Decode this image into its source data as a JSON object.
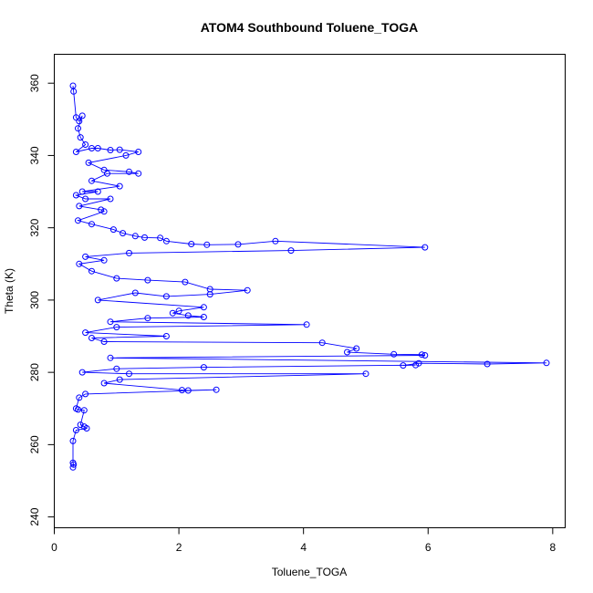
{
  "chart_data": {
    "type": "scatter",
    "title": "ATOM4 Southbound Toluene_TOGA",
    "xlabel": "Toluene_TOGA",
    "ylabel": "Theta (K)",
    "xlim": [
      0,
      8.2
    ],
    "ylim": [
      237,
      368
    ],
    "xticks": [
      0,
      2,
      4,
      6,
      8
    ],
    "yticks": [
      240,
      260,
      280,
      300,
      320,
      340,
      360
    ],
    "grid": false,
    "line_style": "points-connected",
    "series": [
      {
        "name": "Toluene_TOGA vs Theta",
        "color": "#0000ff",
        "points": [
          [
            0.3,
            359.3
          ],
          [
            0.31,
            357.7
          ],
          [
            0.35,
            350.5
          ],
          [
            0.4,
            349.5
          ],
          [
            0.45,
            351
          ],
          [
            0.38,
            347.5
          ],
          [
            0.42,
            345
          ],
          [
            0.5,
            343
          ],
          [
            0.35,
            341
          ],
          [
            0.6,
            342
          ],
          [
            0.7,
            342
          ],
          [
            0.9,
            341.5
          ],
          [
            1.05,
            341.6
          ],
          [
            1.35,
            341
          ],
          [
            1.15,
            340
          ],
          [
            0.55,
            338
          ],
          [
            0.8,
            336
          ],
          [
            1.2,
            335.5
          ],
          [
            1.35,
            335
          ],
          [
            0.85,
            335
          ],
          [
            0.6,
            333
          ],
          [
            1.05,
            331.5
          ],
          [
            0.45,
            330
          ],
          [
            0.7,
            330
          ],
          [
            0.35,
            329
          ],
          [
            0.5,
            328
          ],
          [
            0.9,
            328
          ],
          [
            0.4,
            326
          ],
          [
            0.75,
            325
          ],
          [
            0.8,
            324.5
          ],
          [
            0.38,
            322
          ],
          [
            0.6,
            321
          ],
          [
            0.95,
            319.5
          ],
          [
            1.1,
            318.5
          ],
          [
            1.3,
            317.7
          ],
          [
            1.45,
            317.3
          ],
          [
            1.7,
            317.2
          ],
          [
            1.8,
            316.3
          ],
          [
            2.2,
            315.5
          ],
          [
            2.45,
            315.3
          ],
          [
            2.95,
            315.4
          ],
          [
            3.55,
            316.3
          ],
          [
            5.95,
            314.6
          ],
          [
            3.8,
            313.7
          ],
          [
            1.2,
            313
          ],
          [
            0.5,
            312
          ],
          [
            0.8,
            311
          ],
          [
            0.4,
            310
          ],
          [
            0.6,
            308
          ],
          [
            1.0,
            306
          ],
          [
            1.5,
            305.5
          ],
          [
            2.1,
            305
          ],
          [
            2.5,
            303
          ],
          [
            3.1,
            302.7
          ],
          [
            2.5,
            301.6
          ],
          [
            1.8,
            301
          ],
          [
            1.3,
            302
          ],
          [
            0.7,
            300
          ],
          [
            2.4,
            298
          ],
          [
            2.0,
            297
          ],
          [
            1.9,
            296.4
          ],
          [
            2.15,
            295.7
          ],
          [
            2.4,
            295.3
          ],
          [
            1.5,
            295
          ],
          [
            0.9,
            294
          ],
          [
            4.05,
            293.2
          ],
          [
            1.0,
            292.5
          ],
          [
            0.5,
            291
          ],
          [
            1.8,
            290
          ],
          [
            0.6,
            289.5
          ],
          [
            0.8,
            288.5
          ],
          [
            4.3,
            288.2
          ],
          [
            4.85,
            286.6
          ],
          [
            4.7,
            285.6
          ],
          [
            5.45,
            285
          ],
          [
            5.9,
            284.9
          ],
          [
            5.95,
            284.7
          ],
          [
            0.9,
            284
          ],
          [
            7.9,
            282.6
          ],
          [
            6.95,
            282.3
          ],
          [
            5.85,
            282.5
          ],
          [
            5.6,
            281.9
          ],
          [
            5.8,
            282.0
          ],
          [
            2.4,
            281.4
          ],
          [
            1.0,
            281
          ],
          [
            0.45,
            280
          ],
          [
            1.2,
            279.6
          ],
          [
            5.0,
            279.6
          ],
          [
            1.05,
            278
          ],
          [
            0.8,
            277
          ],
          [
            2.05,
            275.1
          ],
          [
            2.15,
            275.0
          ],
          [
            2.6,
            275.2
          ],
          [
            0.5,
            274
          ],
          [
            0.4,
            273
          ],
          [
            0.35,
            270
          ],
          [
            0.38,
            269.7
          ],
          [
            0.48,
            269.5
          ],
          [
            0.42,
            265.5
          ],
          [
            0.48,
            265
          ],
          [
            0.52,
            264.5
          ],
          [
            0.35,
            264
          ],
          [
            0.3,
            261
          ],
          [
            0.3,
            255
          ],
          [
            0.31,
            254.5
          ],
          [
            0.3,
            253.7
          ]
        ]
      }
    ]
  }
}
